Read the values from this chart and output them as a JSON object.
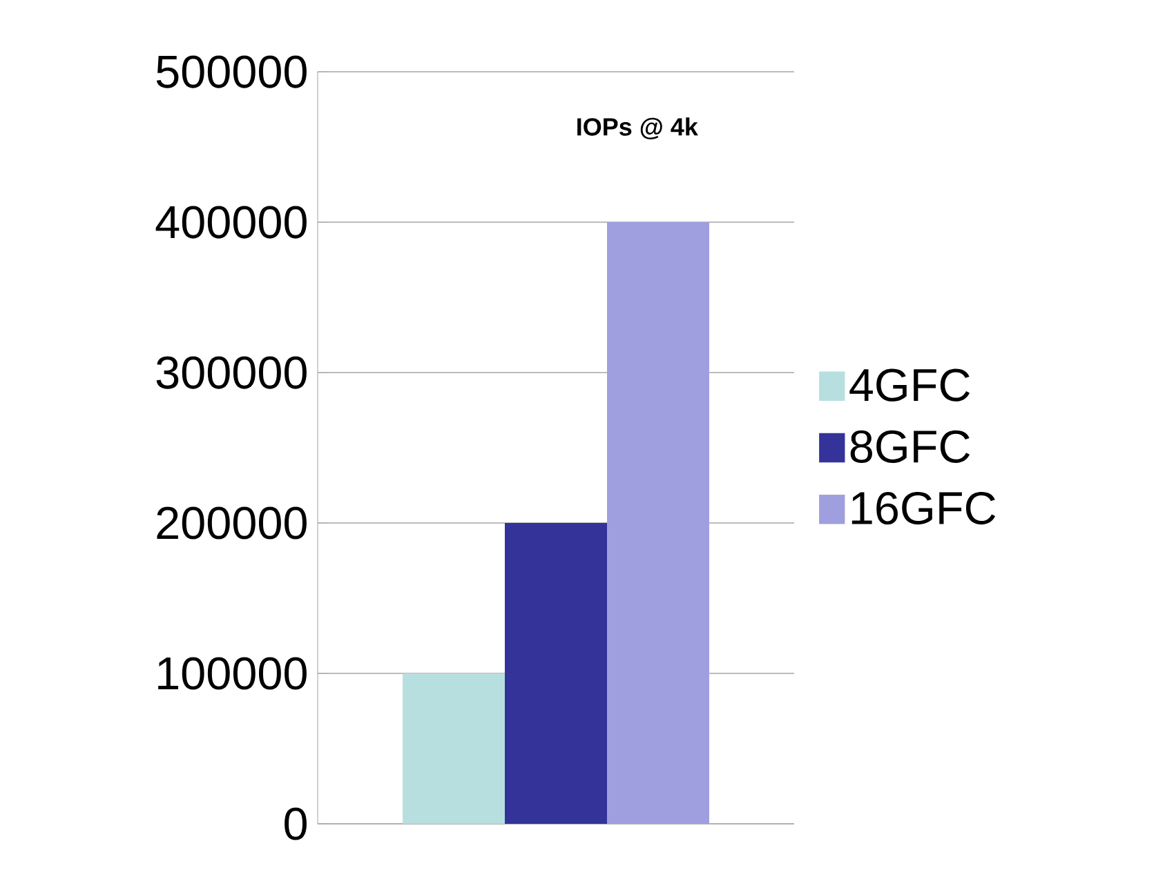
{
  "chart_data": {
    "type": "bar",
    "title": "IOPs @ 4k",
    "categories": [
      null
    ],
    "series": [
      {
        "name": "4GFC",
        "color": "#b7dfe0",
        "values": [
          100000
        ]
      },
      {
        "name": "8GFC",
        "color": "#333399",
        "values": [
          200000
        ]
      },
      {
        "name": "16GFC",
        "color": "#9f9fdf",
        "values": [
          400000
        ]
      }
    ],
    "ylim": [
      0,
      500000
    ],
    "yticks": [
      0,
      100000,
      200000,
      300000,
      400000,
      500000
    ],
    "grid": "y",
    "legend": "right"
  }
}
